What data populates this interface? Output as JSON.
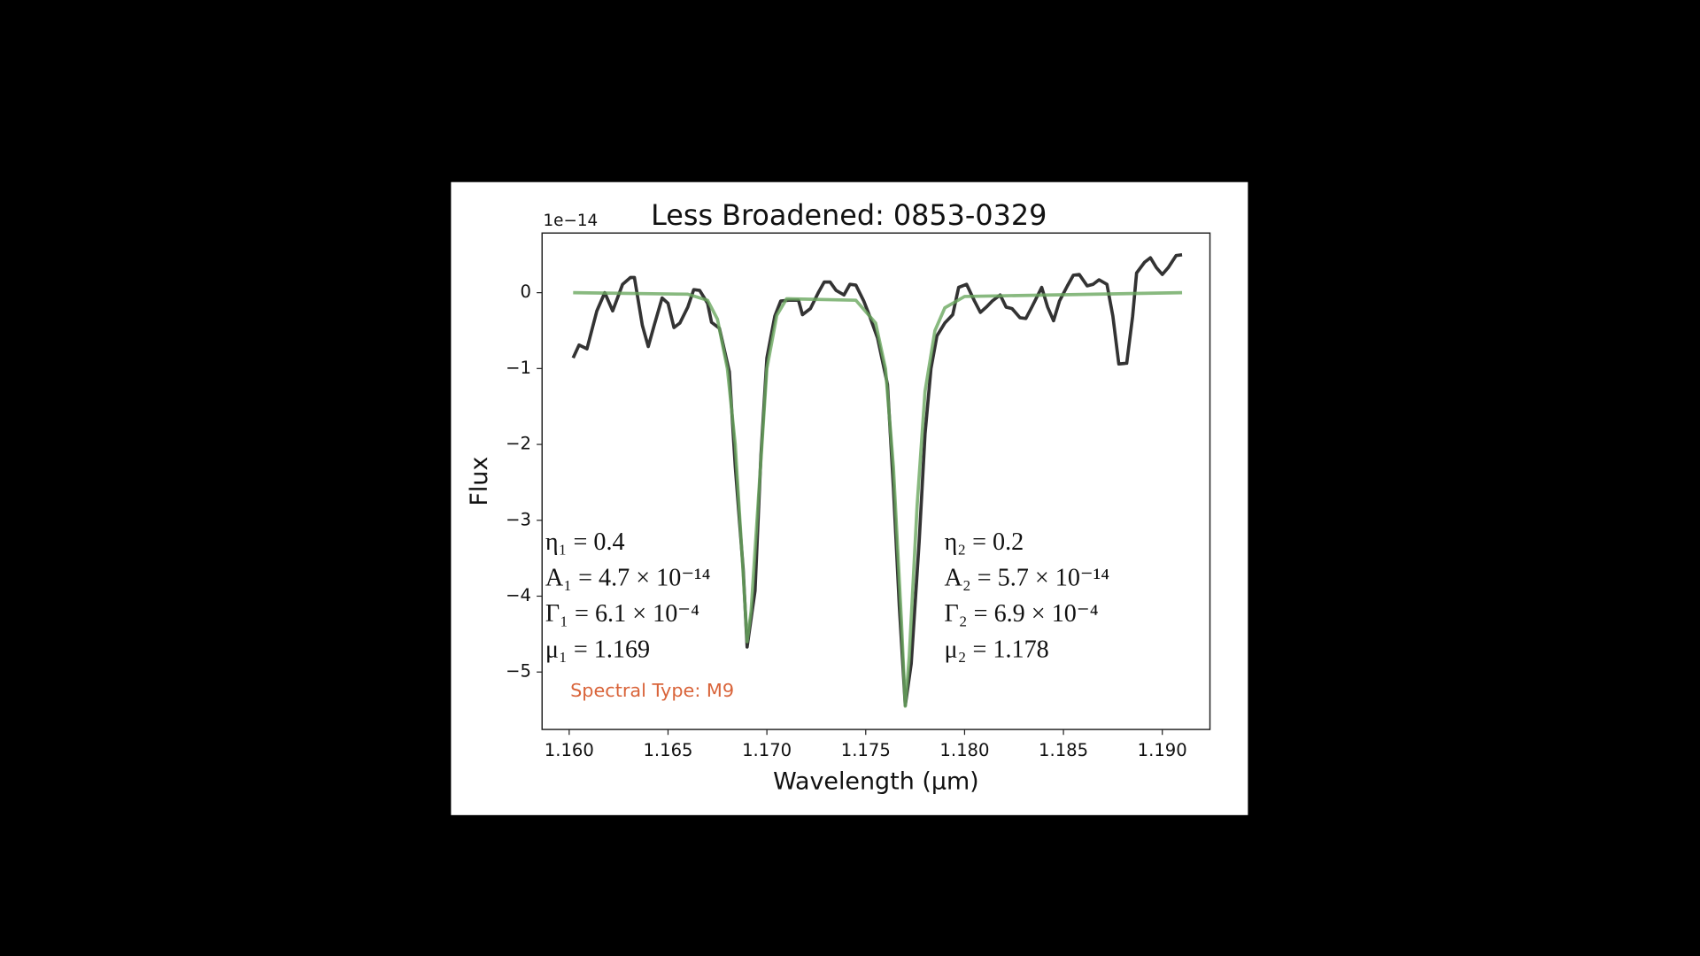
{
  "chart_data": {
    "type": "line",
    "title": "Less Broadened: 0853-0329",
    "xlabel": "Wavelength (µm)",
    "ylabel": "Flux",
    "y_offset_label": "1e−14",
    "xlim": [
      1.15863,
      1.19241
    ],
    "ylim": [
      -5.757,
      0.786
    ],
    "xticks": [
      {
        "value": 1.16,
        "label": "1.160"
      },
      {
        "value": 1.165,
        "label": "1.165"
      },
      {
        "value": 1.17,
        "label": "1.170"
      },
      {
        "value": 1.175,
        "label": "1.175"
      },
      {
        "value": 1.18,
        "label": "1.180"
      },
      {
        "value": 1.185,
        "label": "1.185"
      },
      {
        "value": 1.19,
        "label": "1.190"
      }
    ],
    "yticks": [
      {
        "value": -5,
        "label": "−5"
      },
      {
        "value": -4,
        "label": "−4"
      },
      {
        "value": -3,
        "label": "−3"
      },
      {
        "value": -2,
        "label": "−2"
      },
      {
        "value": -1,
        "label": "−1"
      },
      0
    ],
    "series": [
      {
        "color": "#333333",
        "x": [
          1.1602,
          1.1605,
          1.1609,
          1.1614,
          1.1618,
          1.1622,
          1.1627,
          1.1631,
          1.1633,
          1.1637,
          1.164,
          1.1643,
          1.1647,
          1.165,
          1.1653,
          1.1656,
          1.166,
          1.1663,
          1.1666,
          1.167,
          1.1672,
          1.1676,
          1.1681,
          1.1684,
          1.1688,
          1.169,
          1.1694,
          1.1697,
          1.17,
          1.1704,
          1.1707,
          1.1711,
          1.1716,
          1.1718,
          1.1722,
          1.1726,
          1.1729,
          1.1732,
          1.1735,
          1.1739,
          1.1742,
          1.1745,
          1.1749,
          1.1752,
          1.1756,
          1.1761,
          1.1764,
          1.1767,
          1.177,
          1.1773,
          1.1777,
          1.178,
          1.1783,
          1.1786,
          1.179,
          1.1794,
          1.1797,
          1.1801,
          1.1805,
          1.1808,
          1.1811,
          1.1814,
          1.1818,
          1.1821,
          1.1824,
          1.1828,
          1.1831,
          1.1834,
          1.1839,
          1.1842,
          1.1845,
          1.1848,
          1.1852,
          1.1855,
          1.1858,
          1.1862,
          1.1865,
          1.1868,
          1.1872,
          1.1875,
          1.1878,
          1.1882,
          1.1885,
          1.1887,
          1.1891,
          1.1894,
          1.1897,
          1.19,
          1.1903,
          1.1907,
          1.191
        ],
        "values": [
          -0.86,
          -0.69,
          -0.74,
          -0.24,
          0,
          -0.24,
          0.11,
          0.2,
          0.2,
          -0.43,
          -0.71,
          -0.43,
          -0.07,
          -0.14,
          -0.46,
          -0.4,
          -0.19,
          0.04,
          0.03,
          -0.14,
          -0.39,
          -0.47,
          -1.04,
          -2.29,
          -3.64,
          -4.67,
          -3.93,
          -2.14,
          -0.86,
          -0.31,
          -0.11,
          -0.1,
          -0.1,
          -0.29,
          -0.21,
          0,
          0.14,
          0.14,
          0.03,
          -0.03,
          0.11,
          0.1,
          -0.11,
          -0.31,
          -0.6,
          -1.21,
          -2.57,
          -4.14,
          -5.44,
          -4.89,
          -3.29,
          -1.86,
          -1.0,
          -0.57,
          -0.4,
          -0.29,
          0.07,
          0.11,
          -0.11,
          -0.26,
          -0.19,
          -0.11,
          -0.03,
          -0.19,
          -0.21,
          -0.33,
          -0.34,
          -0.19,
          0.07,
          -0.19,
          -0.37,
          -0.11,
          0.09,
          0.23,
          0.24,
          0.09,
          0.11,
          0.17,
          0.11,
          -0.31,
          -0.94,
          -0.93,
          -0.31,
          0.26,
          0.4,
          0.46,
          0.33,
          0.24,
          0.33,
          0.49,
          0.5
        ]
      },
      {
        "color": "#6aa75f",
        "x": [
          1.1602,
          1.166,
          1.167,
          1.1675,
          1.168,
          1.1684,
          1.1688,
          1.169,
          1.1692,
          1.1696,
          1.17,
          1.1705,
          1.171,
          1.1745,
          1.1755,
          1.176,
          1.1764,
          1.1768,
          1.177,
          1.1772,
          1.1776,
          1.178,
          1.1785,
          1.179,
          1.18,
          1.191
        ],
        "values": [
          0,
          -0.02,
          -0.1,
          -0.35,
          -1.0,
          -2.0,
          -3.7,
          -4.6,
          -4.2,
          -2.6,
          -1.0,
          -0.3,
          -0.08,
          -0.1,
          -0.4,
          -1.0,
          -2.3,
          -4.3,
          -5.45,
          -4.8,
          -2.8,
          -1.3,
          -0.5,
          -0.2,
          -0.05,
          0
        ]
      }
    ],
    "annotations_left": [
      "η₁ = 0.4",
      "A₁ = 4.7 × 10⁻¹⁴",
      "Γ₁ = 6.1 × 10⁻⁴",
      "μ₁ = 1.169"
    ],
    "annotations_right": [
      "η₂ = 0.2",
      "A₂ = 5.7 × 10⁻¹⁴",
      "Γ₂ = 6.9 × 10⁻⁴",
      "μ₂ = 1.178"
    ],
    "note": "Spectral Type: M9",
    "note_color": "#d9643a"
  }
}
